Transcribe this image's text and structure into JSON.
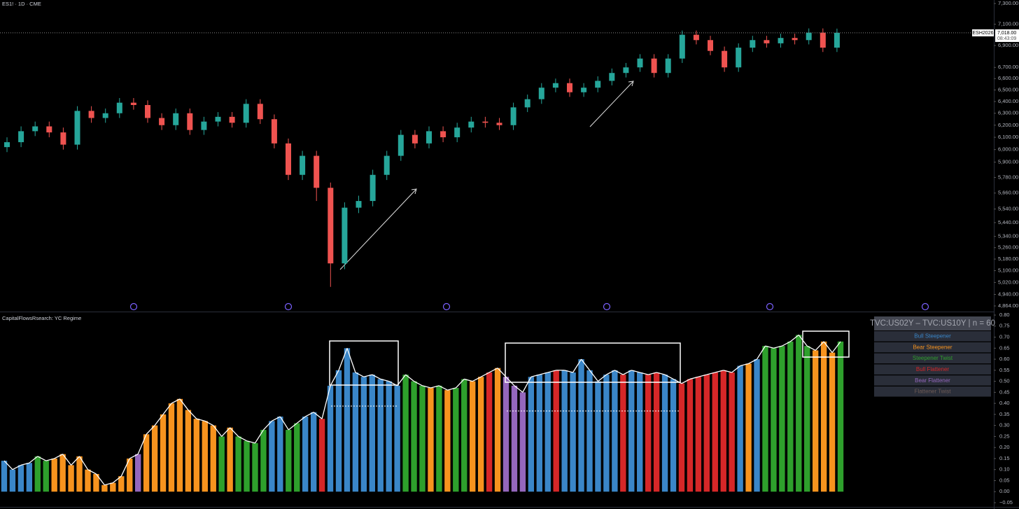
{
  "chart_data": [
    {
      "type": "candlestick",
      "title": "ES1! · 1D · CME",
      "log_scale": true,
      "up_color": "#26a69a",
      "down_color": "#ef5350",
      "ylim": [
        4864,
        7300
      ],
      "yticks": [
        {
          "value": 7300,
          "label": "7,300.00"
        },
        {
          "value": 7100,
          "label": "7,100.00"
        },
        {
          "value": 6900,
          "label": "6,900.00"
        },
        {
          "value": 6700,
          "label": "6,700.00"
        },
        {
          "value": 6600,
          "label": "6,600.00"
        },
        {
          "value": 6500,
          "label": "6,500.00"
        },
        {
          "value": 6400,
          "label": "6,400.00"
        },
        {
          "value": 6300,
          "label": "6,300.00"
        },
        {
          "value": 6200,
          "label": "6,200.00"
        },
        {
          "value": 6100,
          "label": "6,100.00"
        },
        {
          "value": 6000,
          "label": "6,000.00"
        },
        {
          "value": 5900,
          "label": "5,900.00"
        },
        {
          "value": 5780,
          "label": "5,780.00"
        },
        {
          "value": 5660,
          "label": "5,660.00"
        },
        {
          "value": 5540,
          "label": "5,540.00"
        },
        {
          "value": 5440,
          "label": "5,440.00"
        },
        {
          "value": 5340,
          "label": "5,340.00"
        },
        {
          "value": 5260,
          "label": "5,260.00"
        },
        {
          "value": 5180,
          "label": "5,180.00"
        },
        {
          "value": 5100,
          "label": "5,100.00"
        },
        {
          "value": 5020,
          "label": "5,020.00"
        },
        {
          "value": 4940,
          "label": "4,940.00"
        },
        {
          "value": 4864,
          "label": "4,864.00"
        }
      ],
      "last_price": {
        "value": 7018,
        "label": "7,018.00"
      },
      "symbol_label": "ESH2026",
      "countdown": "08:43:09",
      "open": [
        6020,
        6060,
        6150,
        6190,
        6140,
        6040,
        6320,
        6260,
        6300,
        6390,
        6370,
        6260,
        6200,
        6300,
        6160,
        6230,
        6270,
        6220,
        6380,
        6250,
        6050,
        5800,
        5950,
        5700,
        5150,
        5550,
        5600,
        5800,
        5950,
        6120,
        6050,
        6150,
        6100,
        6180,
        6230,
        6220,
        6200,
        6350,
        6420,
        6520,
        6560,
        6480,
        6520,
        6580,
        6650,
        6700,
        6780,
        6650,
        6780,
        7000,
        6950,
        6850,
        6700,
        6880,
        6950,
        6920,
        6970,
        6950,
        7020,
        6880
      ],
      "high": [
        6100,
        6190,
        6230,
        6230,
        6180,
        6360,
        6360,
        6340,
        6430,
        6430,
        6410,
        6300,
        6340,
        6340,
        6270,
        6310,
        6310,
        6420,
        6420,
        6290,
        6090,
        5990,
        5990,
        5740,
        5590,
        5640,
        5840,
        5990,
        6160,
        6160,
        6190,
        6190,
        6220,
        6270,
        6270,
        6260,
        6390,
        6460,
        6560,
        6600,
        6600,
        6560,
        6620,
        6690,
        6740,
        6820,
        6820,
        6820,
        7040,
        7040,
        6990,
        6890,
        6920,
        6990,
        6990,
        7010,
        7010,
        7060,
        7060,
        7058
      ],
      "low": [
        5980,
        6020,
        6110,
        6100,
        6000,
        6000,
        6220,
        6220,
        6260,
        6330,
        6220,
        6160,
        6160,
        6120,
        6120,
        6190,
        6180,
        6180,
        6210,
        6010,
        5760,
        5760,
        5600,
        4990,
        5110,
        5510,
        5560,
        5760,
        5910,
        6010,
        6010,
        6060,
        6060,
        6140,
        6180,
        6160,
        6160,
        6310,
        6380,
        6480,
        6440,
        6440,
        6480,
        6540,
        6610,
        6660,
        6610,
        6610,
        6740,
        6910,
        6810,
        6660,
        6660,
        6840,
        6880,
        6880,
        6910,
        6910,
        6840,
        6840
      ],
      "close": [
        6060,
        6150,
        6190,
        6140,
        6040,
        6320,
        6260,
        6300,
        6390,
        6370,
        6260,
        6200,
        6300,
        6160,
        6230,
        6270,
        6220,
        6380,
        6250,
        6050,
        5800,
        5950,
        5700,
        5150,
        5550,
        5600,
        5800,
        5950,
        6120,
        6050,
        6150,
        6100,
        6180,
        6230,
        6220,
        6200,
        6350,
        6420,
        6520,
        6560,
        6480,
        6520,
        6580,
        6650,
        6700,
        6780,
        6650,
        6780,
        7000,
        6950,
        6850,
        6700,
        6880,
        6950,
        6920,
        6970,
        6950,
        7020,
        6880,
        7018
      ]
    },
    {
      "type": "bar",
      "title": "CapitalFlowsRsearch: YC Regime",
      "legend_title": "TVC:US02Y – TVC:US10Y | n = 60",
      "outline_color": "#ffffff",
      "ylim": [
        -0.05,
        0.8
      ],
      "yticks": [
        {
          "value": 0.8,
          "label": "0.80"
        },
        0.75,
        {
          "value": 0.7,
          "label": "0.70"
        },
        0.65,
        {
          "value": 0.6,
          "label": "0.60"
        },
        0.55,
        {
          "value": 0.5,
          "label": "0.50"
        },
        0.45,
        {
          "value": 0.4,
          "label": "0.40"
        },
        0.35,
        {
          "value": 0.3,
          "label": "0.30"
        },
        0.25,
        {
          "value": 0.2,
          "label": "0.20"
        },
        0.15,
        {
          "value": 0.1,
          "label": "0.10"
        },
        0.05,
        {
          "value": 0,
          "label": "0.00"
        },
        {
          "value": -0.05,
          "label": "−0.05"
        }
      ],
      "series": [
        {
          "name": "Bull Steepener",
          "color": "#3a86c8",
          "values": [
            0.14,
            0.1,
            0.12,
            0.13,
            null,
            null,
            null,
            null,
            null,
            null,
            null,
            null,
            null,
            null,
            null,
            null,
            null,
            null,
            null,
            null,
            null,
            null,
            null,
            null,
            null,
            null,
            null,
            null,
            null,
            null,
            null,
            null,
            0.32,
            0.34,
            null,
            null,
            0.34,
            0.36,
            null,
            0.48,
            0.55,
            0.65,
            0.54,
            0.52,
            0.53,
            0.51,
            0.5,
            0.48,
            null,
            null,
            null,
            null,
            null,
            null,
            null,
            null,
            null,
            null,
            null,
            null,
            null,
            null,
            null,
            0.52,
            0.53,
            0.54,
            null,
            0.55,
            0.54,
            0.6,
            0.55,
            0.5,
            0.53,
            0.55,
            null,
            0.55,
            0.54,
            null,
            null,
            0.53,
            0.51,
            null,
            null,
            null,
            null,
            null,
            null,
            null,
            0.57,
            null,
            0.6,
            null,
            null,
            null,
            null,
            null,
            null,
            null,
            null,
            null,
            null
          ]
        },
        {
          "name": "Bear Steepener",
          "color": "#f7931e",
          "values": [
            null,
            null,
            null,
            null,
            null,
            null,
            0.15,
            0.17,
            0.12,
            0.16,
            0.1,
            0.08,
            0.03,
            0.04,
            0.07,
            0.15,
            null,
            0.26,
            0.3,
            0.35,
            0.4,
            0.42,
            0.37,
            0.33,
            0.32,
            0.3,
            null,
            0.29,
            null,
            null,
            null,
            null,
            null,
            null,
            null,
            null,
            null,
            null,
            null,
            null,
            null,
            null,
            null,
            null,
            null,
            null,
            null,
            null,
            null,
            null,
            null,
            0.47,
            null,
            0.46,
            null,
            null,
            0.5,
            0.52,
            null,
            0.56,
            null,
            null,
            null,
            null,
            null,
            null,
            null,
            null,
            null,
            null,
            null,
            null,
            null,
            null,
            null,
            null,
            null,
            null,
            null,
            null,
            null,
            null,
            null,
            null,
            null,
            null,
            null,
            null,
            null,
            0.58,
            null,
            null,
            null,
            null,
            null,
            null,
            null,
            0.64,
            0.68,
            0.63,
            null
          ]
        },
        {
          "name": "Steepener Twist",
          "color": "#2ea02c",
          "values": [
            null,
            null,
            null,
            null,
            0.16,
            0.14,
            null,
            null,
            null,
            null,
            null,
            null,
            null,
            null,
            null,
            null,
            null,
            null,
            null,
            null,
            null,
            null,
            null,
            null,
            null,
            null,
            0.25,
            null,
            0.25,
            0.23,
            0.22,
            0.28,
            null,
            null,
            0.28,
            0.31,
            null,
            null,
            null,
            null,
            null,
            null,
            null,
            null,
            null,
            null,
            null,
            null,
            0.53,
            0.5,
            0.48,
            null,
            0.48,
            null,
            0.47,
            0.51,
            null,
            null,
            null,
            null,
            null,
            null,
            null,
            null,
            null,
            null,
            null,
            null,
            null,
            null,
            null,
            null,
            null,
            null,
            null,
            null,
            null,
            null,
            null,
            null,
            null,
            null,
            null,
            null,
            null,
            null,
            null,
            null,
            null,
            null,
            null,
            0.66,
            0.65,
            0.66,
            0.68,
            0.71,
            0.66,
            null,
            null,
            null,
            0.68
          ]
        },
        {
          "name": "Bull Flattener",
          "color": "#d62728",
          "values": [
            null,
            null,
            null,
            null,
            null,
            null,
            null,
            null,
            null,
            null,
            null,
            null,
            null,
            null,
            null,
            null,
            null,
            null,
            null,
            null,
            null,
            null,
            null,
            null,
            null,
            null,
            null,
            null,
            null,
            null,
            null,
            null,
            null,
            null,
            null,
            null,
            null,
            null,
            0.33,
            null,
            null,
            null,
            null,
            null,
            null,
            null,
            null,
            null,
            null,
            null,
            null,
            null,
            null,
            null,
            null,
            null,
            null,
            null,
            0.54,
            null,
            null,
            null,
            null,
            null,
            null,
            null,
            0.55,
            null,
            null,
            null,
            null,
            null,
            null,
            null,
            0.53,
            null,
            null,
            0.53,
            0.54,
            null,
            null,
            0.49,
            0.51,
            0.52,
            0.53,
            0.54,
            0.55,
            0.54,
            null,
            null,
            null,
            null,
            null,
            null,
            null,
            null,
            null,
            null,
            null,
            null,
            null
          ]
        },
        {
          "name": "Bear Flattener",
          "color": "#9467bd",
          "values": [
            null,
            null,
            null,
            null,
            null,
            null,
            null,
            null,
            null,
            null,
            null,
            null,
            null,
            null,
            null,
            null,
            0.17,
            null,
            null,
            null,
            null,
            null,
            null,
            null,
            null,
            null,
            null,
            null,
            null,
            null,
            null,
            null,
            null,
            null,
            null,
            null,
            null,
            null,
            null,
            null,
            null,
            null,
            null,
            null,
            null,
            null,
            null,
            null,
            null,
            null,
            null,
            null,
            null,
            null,
            null,
            null,
            null,
            null,
            null,
            null,
            0.52,
            0.48,
            0.45,
            null,
            null,
            null,
            null,
            null,
            null,
            null,
            null,
            null,
            null,
            null,
            null,
            null,
            null,
            null,
            null,
            null,
            null,
            null,
            null,
            null,
            null,
            null,
            null,
            null,
            null,
            null,
            null,
            null,
            null,
            null,
            null,
            null,
            null,
            null,
            null,
            null,
            null
          ]
        },
        {
          "name": "Flattener Twist",
          "color": "#6d5a55",
          "values": [
            null,
            null,
            null,
            null,
            null,
            null,
            null,
            null,
            null,
            null,
            null,
            null,
            null,
            null,
            null,
            null,
            null,
            null,
            null,
            null,
            null,
            null,
            null,
            null,
            null,
            null,
            null,
            null,
            null,
            null,
            null,
            null,
            null,
            null,
            null,
            null,
            null,
            null,
            null,
            null,
            null,
            null,
            null,
            null,
            null,
            null,
            null,
            null,
            null,
            null,
            null,
            null,
            null,
            null,
            null,
            null,
            null,
            null,
            null,
            null,
            null,
            null,
            null,
            null,
            null,
            null,
            null,
            null,
            null,
            null,
            null,
            null,
            null,
            null,
            null,
            null,
            null,
            null,
            null,
            null,
            null,
            null,
            null,
            null,
            null,
            null,
            null,
            null,
            null,
            null,
            null,
            null,
            null,
            null,
            null,
            null,
            null,
            null,
            null,
            null,
            null
          ]
        }
      ]
    }
  ]
}
